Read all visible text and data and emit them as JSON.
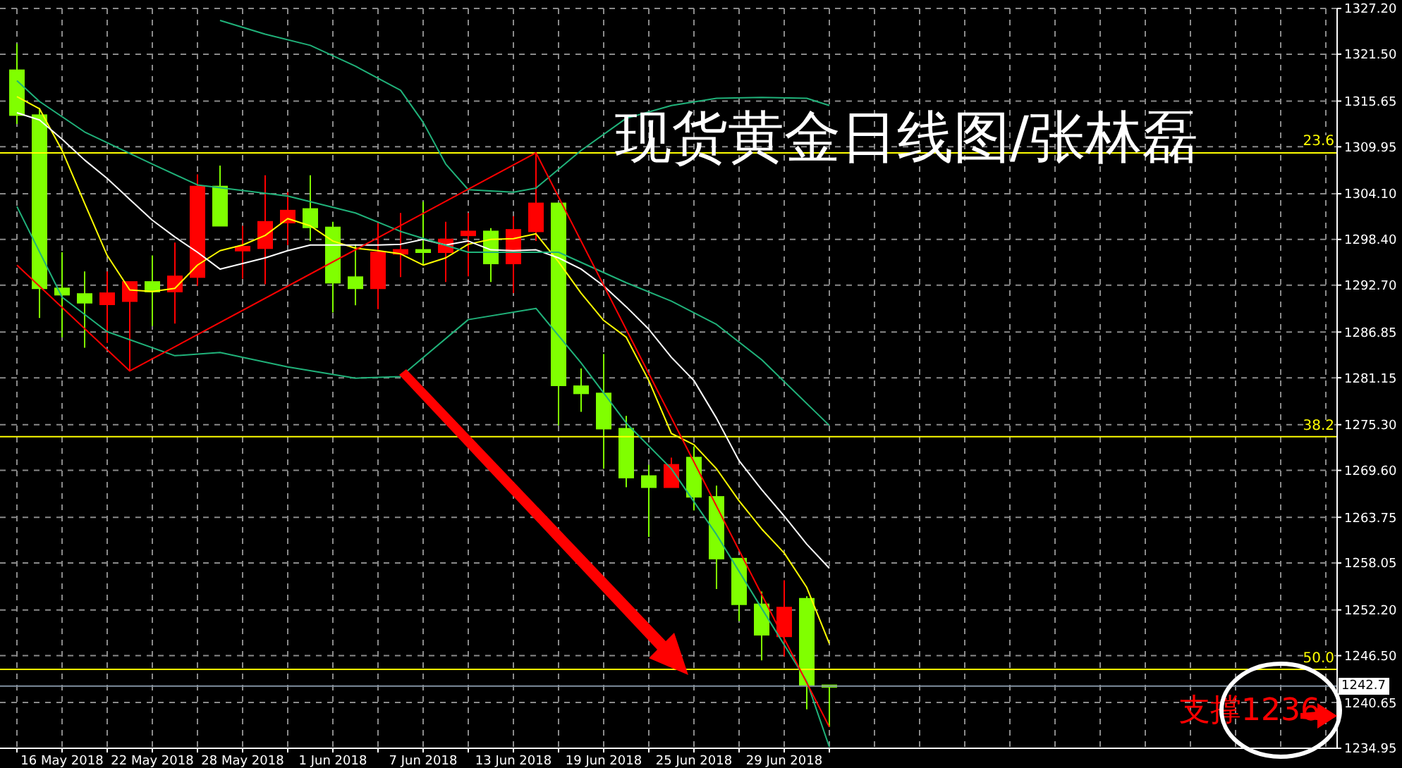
{
  "chart_data": {
    "type": "candlestick",
    "title": "现货黄金日线图/张林磊",
    "categories": [
      null,
      null,
      "16 May 2018",
      null,
      null,
      null,
      "22 May 2018",
      null,
      null,
      null,
      "28 May 2018",
      null,
      null,
      null,
      "1 Jun 2018",
      null,
      null,
      null,
      "7 Jun 2018",
      null,
      null,
      null,
      "13 Jun 2018",
      null,
      null,
      null,
      "19 Jun 2018",
      null,
      null,
      null,
      "25 Jun 2018",
      null,
      null,
      null,
      "29 Jun 2018",
      null,
      null
    ],
    "ohlc": [
      [
        1319.5,
        1322.8,
        1312.8,
        1313.9
      ],
      [
        1313.9,
        1314.8,
        1288.6,
        1292.3
      ],
      [
        1292.3,
        1296.8,
        1286.2,
        1291.5
      ],
      [
        1291.6,
        1294.4,
        1284.9,
        1290.5
      ],
      [
        1290.3,
        1294.4,
        1285.5,
        1291.7
      ],
      [
        1290.7,
        1293.1,
        1282.0,
        1293.1
      ],
      [
        1293.1,
        1296.4,
        1287.6,
        1291.9
      ],
      [
        1291.9,
        1298.0,
        1287.9,
        1293.8
      ],
      [
        1293.7,
        1306.5,
        1292.6,
        1305.0
      ],
      [
        1305.0,
        1307.6,
        1300.1,
        1300.1
      ],
      [
        1297.0,
        1300.1,
        1293.5,
        1297.5
      ],
      [
        1297.3,
        1306.4,
        1292.8,
        1300.6
      ],
      [
        1300.5,
        1304.3,
        1297.7,
        1302.0
      ],
      [
        1302.2,
        1306.4,
        1298.2,
        1299.9
      ],
      [
        1299.9,
        1300.6,
        1289.3,
        1293.0
      ],
      [
        1293.7,
        1297.8,
        1290.2,
        1292.3
      ],
      [
        1292.3,
        1300.6,
        1289.7,
        1296.8
      ],
      [
        1296.6,
        1301.7,
        1293.7,
        1297.1
      ],
      [
        1297.1,
        1303.1,
        1295.2,
        1296.8
      ],
      [
        1296.8,
        1300.6,
        1293.1,
        1298.4
      ],
      [
        1298.9,
        1301.7,
        1293.8,
        1299.4
      ],
      [
        1299.4,
        1299.8,
        1293.1,
        1295.4
      ],
      [
        1295.4,
        1301.3,
        1291.7,
        1299.6
      ],
      [
        1299.4,
        1309.2,
        1298.2,
        1302.9
      ],
      [
        1302.9,
        1302.9,
        1275.2,
        1280.2
      ],
      [
        1280.1,
        1282.3,
        1276.9,
        1279.2
      ],
      [
        1279.2,
        1284.1,
        1269.8,
        1274.8
      ],
      [
        1274.8,
        1276.4,
        1267.5,
        1268.7
      ],
      [
        1268.9,
        1270.3,
        1261.3,
        1267.5
      ],
      [
        1267.5,
        1271.2,
        1267.5,
        1270.3
      ],
      [
        1271.2,
        1272.6,
        1264.6,
        1266.3
      ],
      [
        1266.3,
        1267.7,
        1254.8,
        1258.6
      ],
      [
        1258.6,
        1258.6,
        1250.8,
        1252.9
      ],
      [
        1252.9,
        1254.5,
        1245.9,
        1249.1
      ],
      [
        1248.9,
        1255.9,
        1246.4,
        1252.5
      ],
      [
        1253.6,
        1253.9,
        1239.8,
        1242.8
      ],
      [
        1242.8,
        1242.8,
        1237.6,
        1242.6
      ]
    ],
    "colors": [
      "#80ff00",
      "#80ff00",
      "#80ff00",
      "#80ff00",
      "#ff0000",
      "#ff0000",
      "#80ff00",
      "#ff0000",
      "#ff0000",
      "#80ff00",
      "#ff0000",
      "#ff0000",
      "#ff0000",
      "#80ff00",
      "#80ff00",
      "#80ff00",
      "#ff0000",
      "#ff0000",
      "#80ff00",
      "#ff0000",
      "#ff0000",
      "#80ff00",
      "#ff0000",
      "#ff0000",
      "#80ff00",
      "#80ff00",
      "#80ff00",
      "#80ff00",
      "#80ff00",
      "#ff0000",
      "#80ff00",
      "#80ff00",
      "#80ff00",
      "#80ff00",
      "#ff0000",
      "#80ff00",
      "#80ff00"
    ],
    "series": [
      {
        "type": "line",
        "color": "#ffff00",
        "values": [
          1316.2,
          1314.7,
          1309.5,
          1302.9,
          1296.4,
          1292.1,
          1291.9,
          1292.3,
          1295.2,
          1297.0,
          1297.7,
          1298.9,
          1301.0,
          1300.1,
          1298.2,
          1297.3,
          1297.0,
          1296.6,
          1295.2,
          1296.1,
          1297.8,
          1298.4,
          1298.5,
          1299.1,
          1295.6,
          1291.7,
          1288.3,
          1286.2,
          1280.8,
          1274.2,
          1272.8,
          1269.8,
          1265.8,
          1262.3,
          1259.3,
          1255.0,
          1248.0
        ]
      },
      {
        "type": "line",
        "color": "#ffffff",
        "values": [
          1314.2,
          1313.3,
          1310.9,
          1308.3,
          1306.0,
          1303.4,
          1300.8,
          1298.7,
          1296.8,
          1294.7,
          1295.4,
          1296.1,
          1297.0,
          1297.7,
          1297.7,
          1297.7,
          1297.7,
          1297.8,
          1298.4,
          1297.7,
          1298.2,
          1297.1,
          1297.0,
          1297.1,
          1296.1,
          1294.7,
          1292.6,
          1290.0,
          1287.2,
          1283.7,
          1280.8,
          1276.1,
          1270.8,
          1267.2,
          1263.9,
          1260.4,
          1257.4
        ]
      },
      {
        "type": "line",
        "color": "#20b27a",
        "values": [
          null,
          null,
          null,
          null,
          null,
          null,
          null,
          null,
          null,
          1325.7,
          null,
          1324.0,
          null,
          1322.6,
          null,
          1320.0,
          null,
          1317.0,
          1313.0,
          1307.8,
          1304.6,
          null,
          1304.3,
          1304.8,
          null,
          1309.5,
          null,
          1313.5,
          null,
          1315.1,
          null,
          1316.0,
          null,
          1316.1,
          null,
          1316.0,
          1315.1
        ]
      },
      {
        "type": "line",
        "color": "#20b27a",
        "values": [
          1318.2,
          1315.6,
          null,
          1311.8,
          null,
          null,
          1307.8,
          null,
          1305.2,
          null,
          null,
          null,
          1303.8,
          null,
          null,
          1301.7,
          null,
          1299.4,
          null,
          null,
          1296.8,
          null,
          null,
          null,
          1296.8,
          null,
          null,
          1293.0,
          null,
          1290.7,
          null,
          1287.8,
          null,
          1283.4,
          null,
          null,
          1275.2
        ]
      },
      {
        "type": "line",
        "color": "#20b27a",
        "values": [
          1302.5,
          null,
          1291.2,
          null,
          1286.9,
          null,
          null,
          1283.9,
          null,
          1284.3,
          null,
          null,
          1282.5,
          null,
          null,
          1281.1,
          null,
          1281.3,
          null,
          null,
          1288.4,
          null,
          null,
          1289.8,
          null,
          1283.0,
          null,
          1275.5,
          null,
          1269.8,
          null,
          1261.6,
          null,
          1252.4,
          null,
          1243.3,
          1235.1
        ]
      },
      {
        "type": "line",
        "color": "#ff0000",
        "values": [
          1295.2,
          null,
          null,
          null,
          null,
          1282.0,
          null,
          null,
          null,
          null,
          null,
          null,
          null,
          null,
          null,
          null,
          null,
          null,
          null,
          null,
          null,
          null,
          null,
          1309.2,
          null,
          null,
          null,
          null,
          null,
          null,
          null,
          null,
          null,
          null,
          null,
          null,
          1237.6
        ]
      }
    ],
    "ylim": [
      1234.95,
      1327.2
    ],
    "yticks": [
      {
        "value": 1327.2,
        "label": "1327.20"
      },
      {
        "value": 1321.5,
        "label": "1321.50"
      },
      {
        "value": 1315.65,
        "label": "1315.65"
      },
      {
        "value": 1309.95,
        "label": "1309.95"
      },
      {
        "value": 1304.1,
        "label": "1304.10"
      },
      {
        "value": 1298.4,
        "label": "1298.40"
      },
      {
        "value": 1292.7,
        "label": "1292.70"
      },
      {
        "value": 1286.85,
        "label": "1286.85"
      },
      {
        "value": 1281.15,
        "label": "1281.15"
      },
      {
        "value": 1275.3,
        "label": "1275.30"
      },
      {
        "value": 1269.6,
        "label": "1269.60"
      },
      {
        "value": 1263.75,
        "label": "1263.75"
      },
      {
        "value": 1258.05,
        "label": "1258.05"
      },
      {
        "value": 1252.2,
        "label": "1252.20"
      },
      {
        "value": 1246.5,
        "label": "1246.50"
      },
      {
        "value": 1240.65,
        "label": "1240.65"
      },
      {
        "value": 1234.95,
        "label": "1234.95"
      }
    ],
    "ref_lines": [
      {
        "axis": "y",
        "value": 1309.2,
        "color": "#ffff00"
      },
      {
        "axis": "y",
        "value": 1273.8,
        "color": "#ffff00"
      },
      {
        "axis": "y",
        "value": 1244.8,
        "color": "#ffff00"
      },
      {
        "axis": "y",
        "value": 1242.7,
        "label": "1242.7",
        "color": "#8090a0"
      }
    ],
    "annotations": [
      "支撑1236",
      {
        "text": "23.6",
        "y": 1309.2
      },
      {
        "text": "38.2",
        "y": 1273.8
      },
      {
        "text": "50.0",
        "y": 1244.8
      }
    ],
    "grid": true
  }
}
